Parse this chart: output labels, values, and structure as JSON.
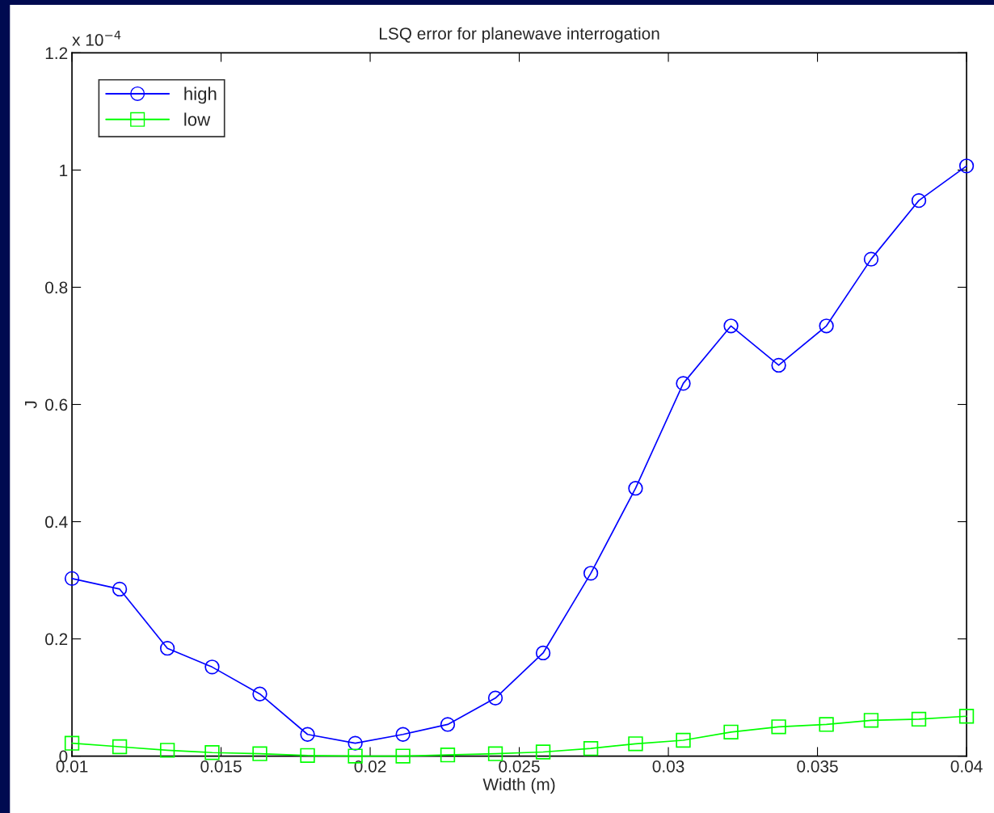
{
  "chart_data": {
    "type": "line",
    "title": "LSQ error for planewave interrogation",
    "xlabel": "Width (m)",
    "ylabel": "J",
    "annotations": [
      "x 10$^{−4}$"
    ],
    "x": [
      0.01,
      0.0116,
      0.0132,
      0.0147,
      0.0163,
      0.0179,
      0.0195,
      0.0211,
      0.0226,
      0.0242,
      0.0258,
      0.0274,
      0.0289,
      0.0305,
      0.0321,
      0.0337,
      0.0353,
      0.0368,
      0.0384,
      0.04
    ],
    "series": [
      {
        "name": "high",
        "color": "#0000ff",
        "marker": "circle",
        "values": [
          0.303,
          0.285,
          0.184,
          0.152,
          0.106,
          0.037,
          0.022,
          0.037,
          0.054,
          0.099,
          0.176,
          0.312,
          0.457,
          0.636,
          0.734,
          0.667,
          0.734,
          0.848,
          0.948,
          1.007
        ]
      },
      {
        "name": "low",
        "color": "#00ff00",
        "marker": "square",
        "values": [
          0.022,
          0.016,
          0.01,
          0.006,
          0.004,
          0.001,
          0,
          0,
          0.002,
          0.004,
          0.007,
          0.013,
          0.021,
          0.027,
          0.041,
          0.05,
          0.054,
          0.061,
          0.063,
          0.068
        ]
      }
    ],
    "xlim": [
      0.01,
      0.04
    ],
    "xticks": [
      0.01,
      0.015,
      0.02,
      0.025,
      0.03,
      0.035,
      0.04
    ],
    "ylim": [
      0,
      1.2
    ],
    "yticks": [
      0,
      0.2,
      0.4,
      0.6,
      0.8,
      1,
      1.2
    ],
    "grid": false,
    "legend": "top left",
    "line_style": "solid"
  }
}
